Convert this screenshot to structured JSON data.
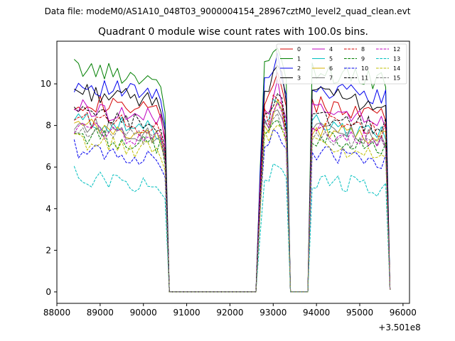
{
  "suptitle": "Data file: modeM0/AS1A10_048T03_9000004154_28967cztM0_level2_quad_clean.evt",
  "chart_data": {
    "type": "line",
    "title": "Quadrant 0 module wise count rates with 100.0s bins.",
    "xlabel": "",
    "ylabel": "",
    "x_offset_label": "+3.501e8",
    "xlim": [
      88000,
      96150
    ],
    "ylim": [
      -0.55,
      12.05
    ],
    "x_ticks": [
      88000,
      89000,
      90000,
      91000,
      92000,
      93000,
      94000,
      95000,
      96000
    ],
    "y_ticks": [
      0,
      2,
      4,
      6,
      8,
      10
    ],
    "grid": false,
    "legend_position": "top-right",
    "segments": [
      {
        "start": 88400,
        "n": 22
      },
      {
        "start": 90600,
        "n": 20
      },
      {
        "start": 92600,
        "n": 8
      },
      {
        "start": 93400,
        "n": 4
      },
      {
        "start": 93800,
        "n": 20
      }
    ],
    "series": [
      {
        "name": "0",
        "color": "#d40000",
        "dash": "solid",
        "base": 9.2
      },
      {
        "name": "1",
        "color": "#007f00",
        "dash": "solid",
        "base": 10.8
      },
      {
        "name": "2",
        "color": "#0000ee",
        "dash": "solid",
        "base": 10.0
      },
      {
        "name": "3",
        "color": "#000000",
        "dash": "solid",
        "base": 9.7
      },
      {
        "name": "4",
        "color": "#bf00bf",
        "dash": "solid",
        "base": 8.9
      },
      {
        "name": "5",
        "color": "#00bfbf",
        "dash": "solid",
        "base": 8.3
      },
      {
        "name": "6",
        "color": "#d4b000",
        "dash": "solid",
        "base": 8.0
      },
      {
        "name": "7",
        "color": "#777777",
        "dash": "solid",
        "base": 8.1
      },
      {
        "name": "8",
        "color": "#d40000",
        "dash": "dashed",
        "base": 8.4
      },
      {
        "name": "9",
        "color": "#007f00",
        "dash": "dashed",
        "base": 7.6
      },
      {
        "name": "10",
        "color": "#0000ee",
        "dash": "dashed",
        "base": 6.9
      },
      {
        "name": "11",
        "color": "#000000",
        "dash": "dashed",
        "base": 8.6
      },
      {
        "name": "12",
        "color": "#bf00bf",
        "dash": "dashed",
        "base": 7.9
      },
      {
        "name": "13",
        "color": "#00bfbf",
        "dash": "dashed",
        "base": 5.6
      },
      {
        "name": "14",
        "color": "#bfbf00",
        "dash": "dashed",
        "base": 7.3
      },
      {
        "name": "15",
        "color": "#777777",
        "dash": "dashed",
        "base": 7.8
      }
    ]
  }
}
